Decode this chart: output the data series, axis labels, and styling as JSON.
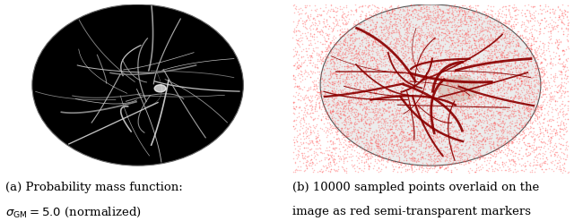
{
  "figsize": [
    6.4,
    2.47
  ],
  "dpi": 100,
  "background_color": "#ffffff",
  "caption_a_line1": "(a) Probability mass function:",
  "caption_a_line2": "$\\sigma_{\\mathrm{GM}} = 5.0$ (normalized)",
  "caption_b_line1": "(b) 10000 sampled points overlaid on the",
  "caption_b_line2": "image as red semi-transparent markers",
  "caption_fontsize": 9.5,
  "dot_color": "#ff4444",
  "dot_alpha": 0.35,
  "num_dots": 10000
}
